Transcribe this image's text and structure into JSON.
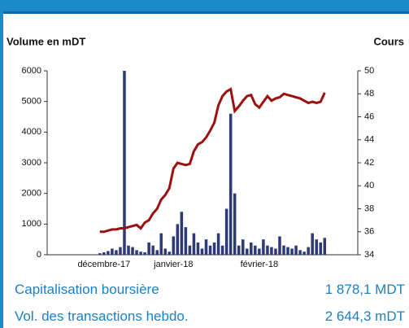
{
  "chart_data": {
    "type": "bar-line",
    "ylabel": "Volume en mDT",
    "y2label": "Cours",
    "categories": [
      null,
      null,
      null,
      null,
      null,
      null,
      null,
      null,
      null,
      null,
      null,
      null,
      null,
      "décembre-17",
      null,
      null,
      null,
      null,
      null,
      null,
      null,
      null,
      null,
      null,
      null,
      null,
      null,
      null,
      null,
      null,
      "janvier-18",
      null,
      null,
      null,
      null,
      null,
      null,
      null,
      null,
      null,
      null,
      null,
      null,
      null,
      null,
      null,
      null,
      null,
      null,
      null,
      null,
      "février-18",
      null,
      null,
      null,
      null,
      null,
      null,
      null,
      null,
      null,
      null,
      null,
      null,
      null,
      null,
      null,
      null,
      null,
      null,
      null,
      null,
      null,
      null,
      null,
      null
    ],
    "series": [
      {
        "type": "bar",
        "color": "#2e3a78",
        "axis": "y",
        "values": [
          null,
          null,
          null,
          null,
          null,
          null,
          null,
          null,
          null,
          null,
          null,
          null,
          50,
          80,
          120,
          200,
          150,
          250,
          6000,
          300,
          250,
          150,
          100,
          80,
          400,
          300,
          150,
          700,
          200,
          100,
          600,
          1000,
          1400,
          900,
          300,
          700,
          400,
          200,
          500,
          300,
          400,
          700,
          300,
          1500,
          4600,
          2000,
          300,
          500,
          200,
          400,
          300,
          200,
          500,
          300,
          250,
          200,
          600,
          300,
          250,
          200,
          300,
          150,
          100,
          250,
          700,
          500,
          400,
          550,
          null,
          null,
          null,
          null,
          null,
          null,
          null,
          null
        ]
      },
      {
        "type": "line",
        "color": "#9b1111",
        "axis": "y2",
        "values": [
          null,
          null,
          null,
          null,
          null,
          null,
          null,
          null,
          null,
          null,
          null,
          null,
          36.0,
          36.0,
          36.1,
          36.2,
          36.2,
          36.3,
          36.3,
          36.4,
          36.5,
          36.6,
          36.3,
          36.8,
          37.0,
          37.6,
          38.0,
          38.8,
          39.2,
          39.8,
          41.5,
          42.0,
          41.9,
          41.8,
          41.9,
          43.0,
          43.6,
          43.8,
          44.2,
          44.8,
          45.5,
          47.0,
          47.8,
          48.2,
          48.4,
          46.5,
          46.9,
          47.4,
          47.8,
          47.9,
          47.1,
          46.8,
          47.3,
          47.8,
          47.4,
          47.6,
          47.7,
          48.0,
          47.9,
          47.8,
          47.7,
          47.6,
          47.4,
          47.2,
          47.3,
          47.2,
          47.3,
          48.1,
          null,
          null,
          null,
          null,
          null,
          null,
          null,
          null
        ]
      }
    ],
    "ylim": [
      0,
      6000
    ],
    "yticks": [
      0,
      1000,
      2000,
      3000,
      4000,
      5000,
      6000
    ],
    "y2lim": [
      34,
      50
    ],
    "y2ticks": [
      34,
      36,
      38,
      40,
      42,
      44,
      46,
      48,
      50
    ]
  },
  "info": [
    {
      "label": "Capitalisation boursière",
      "value": "1 878,1 MDT"
    },
    {
      "label": "Vol. des transactions hebdo.",
      "value": "2 644,3 mDT"
    }
  ]
}
